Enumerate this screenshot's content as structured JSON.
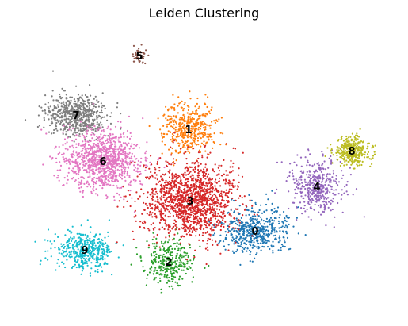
{
  "chart_data": {
    "type": "scatter",
    "title": "Leiden Clustering",
    "xlabel": "",
    "ylabel": "",
    "axes_visible": false,
    "grid": false,
    "legend": "on data",
    "series": [
      {
        "name": "0",
        "color": "#1f77b4",
        "center": [
          322,
          291
        ],
        "spread": [
          38,
          26
        ],
        "count": 520
      },
      {
        "name": "1",
        "color": "#ff7f0e",
        "center": [
          238,
          163
        ],
        "spread": [
          30,
          30
        ],
        "count": 420
      },
      {
        "name": "2",
        "color": "#2ca02c",
        "center": [
          213,
          330
        ],
        "spread": [
          28,
          26
        ],
        "count": 320
      },
      {
        "name": "3",
        "color": "#d62728",
        "center": [
          240,
          253
        ],
        "spread": [
          52,
          44
        ],
        "count": 1400
      },
      {
        "name": "4",
        "color": "#9467bd",
        "center": [
          400,
          235
        ],
        "spread": [
          30,
          32
        ],
        "count": 420
      },
      {
        "name": "5",
        "color": "#8c564b",
        "center": [
          176,
          70
        ],
        "spread": [
          8,
          10
        ],
        "count": 50
      },
      {
        "name": "6",
        "color": "#e377c2",
        "center": [
          130,
          203
        ],
        "spread": [
          44,
          34
        ],
        "count": 1000
      },
      {
        "name": "7",
        "color": "#7f7f7f",
        "center": [
          96,
          145
        ],
        "spread": [
          34,
          24
        ],
        "count": 600
      },
      {
        "name": "8",
        "color": "#bcbd22",
        "center": [
          444,
          190
        ],
        "spread": [
          22,
          16
        ],
        "count": 330
      },
      {
        "name": "9",
        "color": "#17becf",
        "center": [
          107,
          315
        ],
        "spread": [
          34,
          20
        ],
        "count": 420
      }
    ]
  }
}
